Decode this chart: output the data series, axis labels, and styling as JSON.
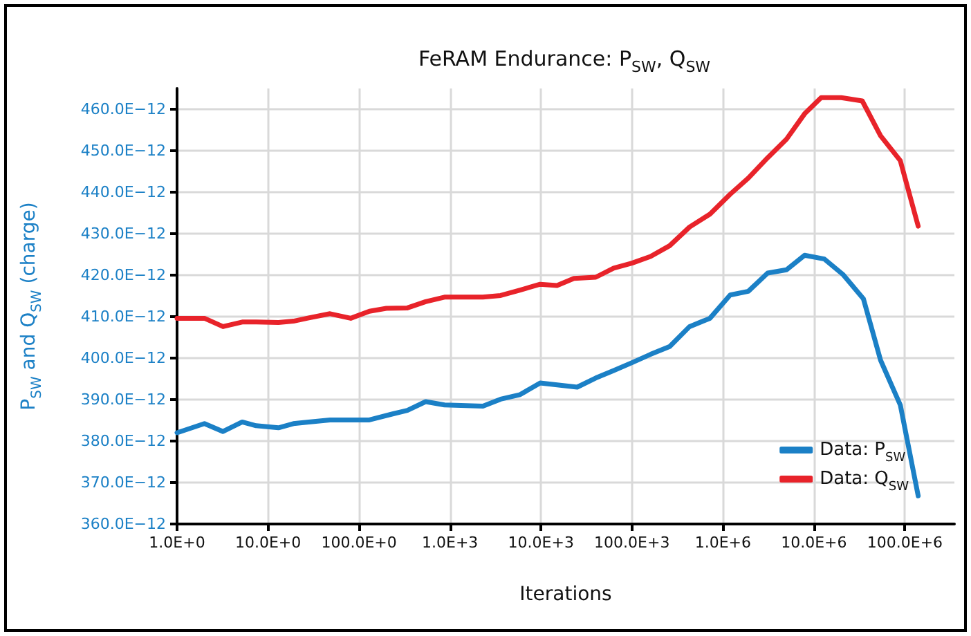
{
  "chart_data": {
    "type": "line",
    "title": "FeRAM Endurance: P$_{SW}$, Q$_{SW}$",
    "xlabel": "Iterations",
    "ylabel": "P$_{SW}$ and Q$_{SW}$ (charge)",
    "log": "x",
    "grid": true,
    "legend": "bottom right",
    "marker": "none",
    "line_style": "solid",
    "xlim": [
      1,
      350000000
    ],
    "ylim": [
      3.6e-10,
      4.65e-10
    ],
    "xticks": [
      {
        "value": 1,
        "label": "1.0E+0"
      },
      {
        "value": 10,
        "label": "10.0E+0"
      },
      {
        "value": 100,
        "label": "100.0E+0"
      },
      {
        "value": 1000,
        "label": "1.0E+3"
      },
      {
        "value": 10000,
        "label": "10.0E+3"
      },
      {
        "value": 100000,
        "label": "100.0E+3"
      },
      {
        "value": 1000000,
        "label": "1.0E+6"
      },
      {
        "value": 10000000,
        "label": "10.0E+6"
      },
      {
        "value": 100000000,
        "label": "100.0E+6"
      }
    ],
    "yticks": [
      {
        "value": 3.6e-10,
        "label": "360.0E−12"
      },
      {
        "value": 3.7e-10,
        "label": "370.0E−12"
      },
      {
        "value": 3.8e-10,
        "label": "380.0E−12"
      },
      {
        "value": 3.9e-10,
        "label": "390.0E−12"
      },
      {
        "value": 4e-10,
        "label": "400.0E−12"
      },
      {
        "value": 4.1e-10,
        "label": "410.0E−12"
      },
      {
        "value": 4.2e-10,
        "label": "420.0E−12"
      },
      {
        "value": 4.3e-10,
        "label": "430.0E−12"
      },
      {
        "value": 4.4e-10,
        "label": "440.0E−12"
      },
      {
        "value": 4.5e-10,
        "label": "450.0E−12"
      },
      {
        "value": 4.6e-10,
        "label": "460.0E−12"
      }
    ],
    "series": [
      {
        "name": "Data: P$_{SW}$",
        "color": "#1b80c6",
        "x": [
          1,
          2,
          3.2,
          5.2,
          7.4,
          13,
          19,
          28,
          48,
          130,
          230,
          340,
          540,
          870,
          2300,
          3600,
          5900,
          9800,
          25000,
          40000,
          63000,
          100000,
          160000,
          260000,
          430000,
          720000,
          1200000,
          1900000,
          3100000,
          5000000,
          7900000,
          13000000,
          21000000,
          35000000,
          54000000,
          89000000,
          140000000
        ],
        "values": [
          3.82e-10,
          3.842e-10,
          3.823e-10,
          3.846e-10,
          3.837e-10,
          3.832e-10,
          3.842e-10,
          3.846e-10,
          3.851e-10,
          3.851e-10,
          3.865e-10,
          3.874e-10,
          3.895e-10,
          3.887e-10,
          3.884e-10,
          3.901e-10,
          3.912e-10,
          3.94e-10,
          3.93e-10,
          3.952e-10,
          3.97e-10,
          3.989e-10,
          4.009e-10,
          4.028e-10,
          4.076e-10,
          4.096e-10,
          4.152e-10,
          4.161e-10,
          4.205e-10,
          4.213e-10,
          4.248e-10,
          4.239e-10,
          4.201e-10,
          4.143e-10,
          3.995e-10,
          3.887e-10,
          3.668e-10
        ]
      },
      {
        "name": "Data: Q$_{SW}$",
        "color": "#e8232a",
        "x": [
          1,
          2,
          3.2,
          5.2,
          7.4,
          13,
          19,
          28,
          48,
          81,
          130,
          200,
          340,
          540,
          870,
          2300,
          3600,
          5900,
          9800,
          15000,
          23000,
          40000,
          63000,
          100000,
          160000,
          260000,
          430000,
          720000,
          1200000,
          1900000,
          3100000,
          5000000,
          7900000,
          12000000,
          20000000,
          34000000,
          54000000,
          89000000,
          140000000
        ],
        "values": [
          4.096e-10,
          4.096e-10,
          4.076e-10,
          4.087e-10,
          4.087e-10,
          4.086e-10,
          4.089e-10,
          4.097e-10,
          4.107e-10,
          4.096e-10,
          4.113e-10,
          4.12e-10,
          4.121e-10,
          4.136e-10,
          4.147e-10,
          4.147e-10,
          4.151e-10,
          4.164e-10,
          4.178e-10,
          4.175e-10,
          4.192e-10,
          4.195e-10,
          4.217e-10,
          4.229e-10,
          4.245e-10,
          4.271e-10,
          4.316e-10,
          4.347e-10,
          4.395e-10,
          4.434e-10,
          4.483e-10,
          4.528e-10,
          4.589e-10,
          4.628e-10,
          4.628e-10,
          4.62e-10,
          4.536e-10,
          4.476e-10,
          4.318e-10
        ]
      }
    ]
  }
}
